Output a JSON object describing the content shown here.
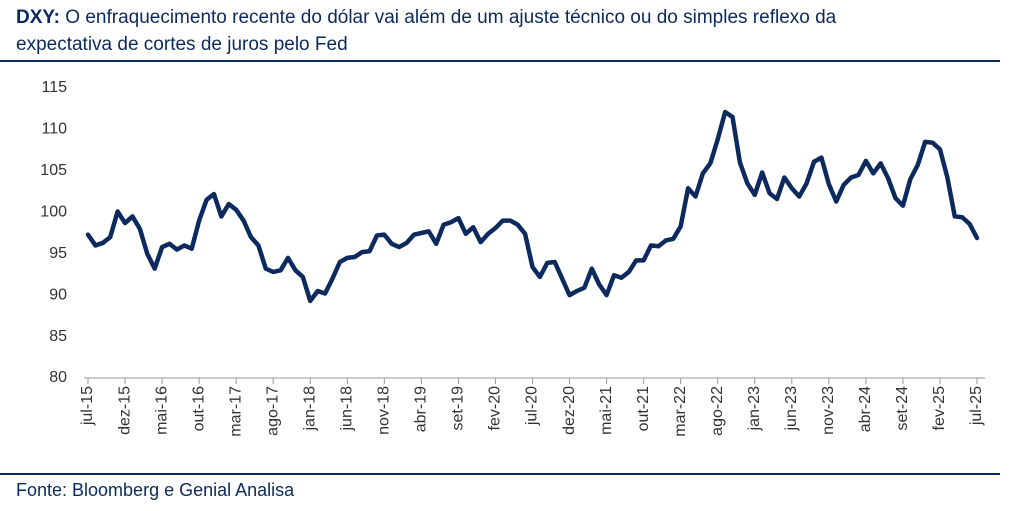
{
  "chart_data": {
    "type": "line",
    "title_prefix": "DXY:",
    "title": "O enfraquecimento recente do dólar vai além de um ajuste técnico ou do simples reflexo da expectativa de cortes de juros pelo Fed",
    "source": "Fonte: Bloomberg e Genial Analisa",
    "categories": [
      "jul-15",
      null,
      null,
      null,
      null,
      "dez-15",
      null,
      null,
      null,
      null,
      "mai-16",
      null,
      null,
      null,
      null,
      "out-16",
      null,
      null,
      null,
      null,
      "mar-17",
      null,
      null,
      null,
      null,
      "ago-17",
      null,
      null,
      null,
      null,
      "jan-18",
      null,
      null,
      null,
      null,
      "jun-18",
      null,
      null,
      null,
      null,
      "nov-18",
      null,
      null,
      null,
      null,
      "abr-19",
      null,
      null,
      null,
      null,
      "set-19",
      null,
      null,
      null,
      null,
      "fev-20",
      null,
      null,
      null,
      null,
      "jul-20",
      null,
      null,
      null,
      null,
      "dez-20",
      null,
      null,
      null,
      null,
      "mai-21",
      null,
      null,
      null,
      null,
      "out-21",
      null,
      null,
      null,
      null,
      "mar-22",
      null,
      null,
      null,
      null,
      "ago-22",
      null,
      null,
      null,
      null,
      "jan-23",
      null,
      null,
      null,
      null,
      "jun-23",
      null,
      null,
      null,
      null,
      "nov-23",
      null,
      null,
      null,
      null,
      "abr-24",
      null,
      null,
      null,
      null,
      "set-24",
      null,
      null,
      null,
      null,
      "fev-25",
      null,
      null,
      null,
      null,
      "jul-25"
    ],
    "series": [
      {
        "name": "DXY",
        "color": "#0d2a5e",
        "values": [
          97.3,
          96.0,
          96.3,
          97.0,
          100.1,
          98.7,
          99.5,
          98.0,
          95.0,
          93.2,
          95.8,
          96.2,
          95.5,
          96.0,
          95.6,
          99.0,
          101.5,
          102.2,
          99.5,
          101.0,
          100.3,
          99.0,
          97.0,
          96.0,
          93.2,
          92.8,
          93.0,
          94.5,
          93.0,
          92.2,
          89.3,
          90.5,
          90.2,
          92.0,
          94.0,
          94.5,
          94.6,
          95.2,
          95.3,
          97.2,
          97.3,
          96.2,
          95.8,
          96.3,
          97.3,
          97.5,
          97.7,
          96.2,
          98.5,
          98.8,
          99.3,
          97.4,
          98.2,
          96.4,
          97.4,
          98.1,
          99.0,
          99.0,
          98.5,
          97.4,
          93.4,
          92.2,
          93.9,
          94.0,
          92.0,
          90.0,
          90.5,
          90.9,
          93.2,
          91.3,
          90.0,
          92.4,
          92.1,
          92.8,
          94.2,
          94.2,
          96.0,
          95.9,
          96.6,
          96.8,
          98.3,
          102.9,
          101.9,
          104.7,
          105.9,
          108.8,
          112.1,
          111.5,
          106.0,
          103.5,
          102.1,
          104.8,
          102.3,
          101.6,
          104.2,
          102.9,
          101.9,
          103.5,
          106.1,
          106.6,
          103.4,
          101.3,
          103.3,
          104.2,
          104.5,
          106.2,
          104.7,
          105.9,
          104.1,
          101.7,
          100.8,
          104.0,
          105.7,
          108.5,
          108.4,
          107.6,
          104.2,
          99.5,
          99.4,
          98.6,
          96.9
        ]
      }
    ],
    "ylim": [
      80,
      115
    ],
    "yticks": [
      80,
      85,
      90,
      95,
      100,
      105,
      110,
      115
    ],
    "grid": false
  }
}
